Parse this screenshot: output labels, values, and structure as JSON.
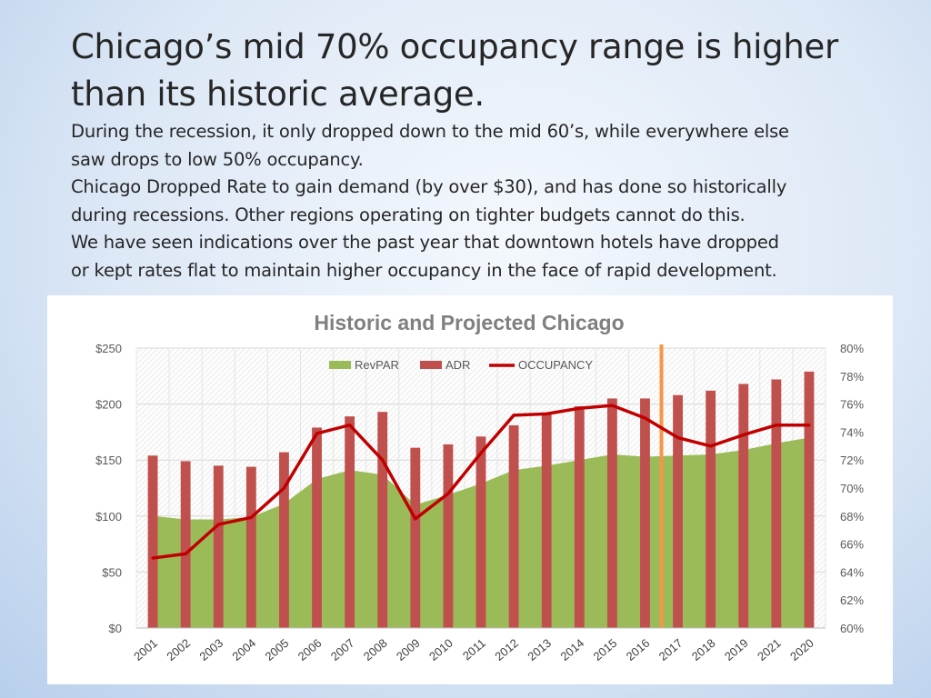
{
  "slide": {
    "title_lines": [
      "Chicago’s mid 70% occupancy range is higher",
      "than its historic average."
    ],
    "body_lines": [
      "During the recession, it only dropped down to the mid 60’s, while everywhere else",
      "saw drops to low 50% occupancy.",
      "Chicago Dropped Rate to gain demand (by over $30), and has done so historically",
      "during recessions.  Other regions operating on tighter budgets cannot do this.",
      "We have seen indications over the past year that downtown hotels have dropped",
      "or kept rates flat to maintain higher occupancy in the face of rapid development."
    ]
  },
  "chart_data": {
    "type": "bar",
    "title": "Historic and Projected Chicago",
    "categories": [
      "2001",
      "2002",
      "2003",
      "2004",
      "2005",
      "2006",
      "2007",
      "2008",
      "2009",
      "2010",
      "2011",
      "2012",
      "2013",
      "2014",
      "2015",
      "2016",
      "2017",
      "2018",
      "2019",
      "2021",
      "2020"
    ],
    "series": [
      {
        "name": "RevPAR",
        "type": "area",
        "axis": "left",
        "color": "#9bbb59",
        "values": [
          100,
          97,
          97,
          99,
          111,
          133,
          141,
          137,
          110,
          119,
          129,
          141,
          145,
          150,
          155,
          153,
          154,
          155,
          159,
          165,
          170
        ]
      },
      {
        "name": "ADR",
        "type": "bar",
        "axis": "left",
        "color": "#c0504d",
        "values": [
          154,
          149,
          145,
          144,
          157,
          179,
          189,
          193,
          161,
          164,
          171,
          181,
          191,
          198,
          205,
          205,
          208,
          212,
          218,
          222,
          229
        ]
      },
      {
        "name": "OCCUPANCY",
        "type": "line",
        "axis": "right",
        "color": "#c00000",
        "values": [
          65.0,
          65.3,
          67.4,
          67.9,
          70.0,
          73.9,
          74.5,
          72.0,
          67.8,
          69.6,
          72.5,
          75.2,
          75.3,
          75.7,
          75.9,
          75.0,
          73.6,
          73.0,
          73.8,
          74.5,
          74.5
        ]
      }
    ],
    "y_left": {
      "ylim": [
        0,
        250
      ],
      "ticks": [
        0,
        50,
        100,
        150,
        200,
        250
      ],
      "tick_labels": [
        "$0",
        "$50",
        "$100",
        "$150",
        "$200",
        "$250"
      ]
    },
    "y_right": {
      "ylim": [
        60,
        80
      ],
      "ticks": [
        60,
        62,
        64,
        66,
        68,
        70,
        72,
        74,
        76,
        78,
        80
      ],
      "tick_labels": [
        "60%",
        "62%",
        "64%",
        "66%",
        "68%",
        "70%",
        "72%",
        "74%",
        "76%",
        "78%",
        "80%"
      ]
    },
    "marker": {
      "category": "2016",
      "position": "after",
      "color": "#f79646"
    },
    "legend": {
      "position": "top",
      "items": [
        "RevPAR",
        "ADR",
        "OCCUPANCY"
      ]
    },
    "grid": true,
    "xlabel": "",
    "ylabel": ""
  }
}
